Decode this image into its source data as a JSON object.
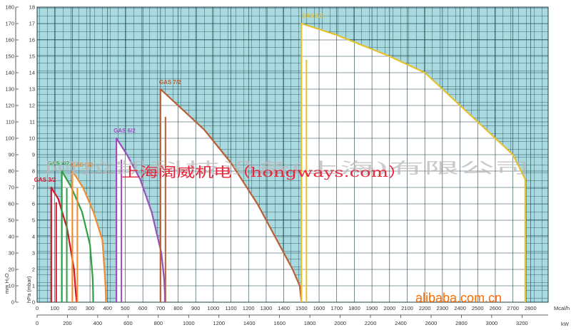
{
  "chart_data": {
    "type": "line",
    "xaxis_top": {
      "unit": "Mcal/h",
      "ticks": [
        0,
        100,
        200,
        300,
        400,
        500,
        600,
        700,
        800,
        900,
        1000,
        1100,
        1200,
        1300,
        1400,
        1500,
        1600,
        1700,
        1800,
        1900,
        2000,
        2100,
        2200,
        2300,
        2400,
        2500,
        2600,
        2700,
        2800
      ],
      "xlim": [
        0,
        2900
      ]
    },
    "xaxis_bottom": {
      "unit": "kW",
      "ticks": [
        0,
        200,
        400,
        600,
        800,
        1000,
        1200,
        1400,
        1600,
        1800,
        2000,
        2200,
        2400,
        2600,
        2800,
        3000,
        3200
      ]
    },
    "yaxis_left": {
      "label": "mm H₂O",
      "ticks": [
        0,
        10,
        20,
        30,
        40,
        50,
        60,
        70,
        80,
        90,
        100,
        110,
        120,
        130,
        140,
        150,
        160,
        170,
        180
      ],
      "ylim": [
        0,
        180
      ]
    },
    "yaxis_right": {
      "label": "hPa (mbar)",
      "ticks": [
        0,
        1,
        2,
        3,
        4,
        5,
        6,
        7,
        8,
        9,
        10,
        11,
        12,
        13,
        14,
        15,
        16,
        17,
        18
      ]
    },
    "grid": true,
    "series": [
      {
        "name": "GAS 3/2",
        "color": "#d3162c",
        "x": [
          80,
          80,
          120,
          170,
          210,
          220,
          225
        ],
        "y": [
          0,
          70,
          63,
          45,
          20,
          5,
          0
        ]
      },
      {
        "name": "GAS 4/2",
        "color": "#2ca040",
        "x": [
          140,
          140,
          195,
          255,
          300,
          315,
          318,
          318
        ],
        "y": [
          0,
          80,
          70,
          55,
          35,
          15,
          5,
          0
        ]
      },
      {
        "name": "GAS 5/2",
        "color": "#f08c30",
        "x": [
          200,
          200,
          260,
          320,
          370,
          385,
          390,
          390
        ],
        "y": [
          0,
          80,
          70,
          55,
          38,
          15,
          5,
          0
        ]
      },
      {
        "name": "GAS 6/2",
        "color": "#9a50b8",
        "x": [
          450,
          450,
          510,
          585,
          650,
          705,
          720,
          725,
          725
        ],
        "y": [
          0,
          100,
          90,
          75,
          55,
          30,
          15,
          5,
          0
        ]
      },
      {
        "name": "GAS 7/2",
        "color": "#b86034",
        "x": [
          700,
          700,
          800,
          950,
          1100,
          1250,
          1350,
          1450,
          1490,
          1500
        ],
        "y": [
          0,
          130,
          120,
          105,
          85,
          60,
          40,
          20,
          10,
          0
        ]
      },
      {
        "name": "GAS 9/2",
        "color": "#e5c22c",
        "x": [
          1500,
          1500,
          1700,
          2000,
          2200,
          2300,
          2500,
          2600,
          2700,
          2770,
          2770
        ],
        "y": [
          0,
          170,
          163,
          150,
          140,
          130,
          110,
          100,
          90,
          75,
          0
        ]
      }
    ],
    "labels": [
      "GAS 3/2",
      "GAS 4/2",
      "GAS 5/2",
      "GAS 6/2",
      "GAS 7/2",
      "GAS 9/2"
    ],
    "watermarks": {
      "chinese": "阿拉凯科技设备(上海)有限公司",
      "red_line": "上海阔威机电（hongways.com）",
      "brand": "alibaba.com.cn"
    }
  }
}
